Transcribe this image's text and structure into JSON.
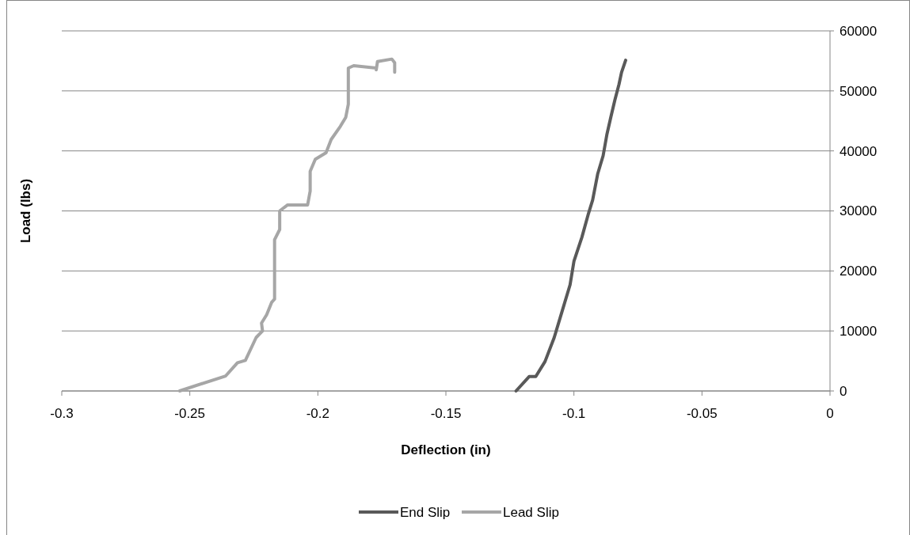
{
  "chart_data": {
    "type": "line",
    "xlabel": "Deflection (in)",
    "ylabel": "Load (lbs)",
    "xlim": [
      -0.3,
      0
    ],
    "xticks": [
      -0.3,
      -0.25,
      -0.2,
      -0.15,
      -0.1,
      -0.05,
      0
    ],
    "ylim": [
      0,
      60000
    ],
    "yticks": [
      0,
      10000,
      20000,
      30000,
      40000,
      50000,
      60000
    ],
    "grid": "y",
    "legend": "bottom",
    "line_style": "solid",
    "series": [
      {
        "name": "End Slip",
        "color": "#595959",
        "x": [
          -0.1226,
          -0.1175,
          -0.1149,
          -0.1113,
          -0.1077,
          -0.1046,
          -0.1015,
          -0.1,
          -0.0969,
          -0.0943,
          -0.0927,
          -0.0907,
          -0.0886,
          -0.0871,
          -0.0855,
          -0.084,
          -0.0824,
          -0.0814,
          -0.0798
        ],
        "values": [
          0,
          2400,
          2400,
          4900,
          8900,
          13300,
          17700,
          21600,
          25600,
          29600,
          31800,
          36200,
          39200,
          42800,
          45800,
          48500,
          51100,
          53100,
          55100
        ]
      },
      {
        "name": "Lead Slip",
        "color": "#a6a6a6",
        "x": [
          -0.254,
          -0.236,
          -0.2314,
          -0.2283,
          -0.2241,
          -0.2216,
          -0.222,
          -0.22,
          -0.218,
          -0.2169,
          -0.2169,
          -0.2149,
          -0.2149,
          -0.2118,
          -0.204,
          -0.203,
          -0.203,
          -0.201,
          -0.1968,
          -0.1948,
          -0.1912,
          -0.1891,
          -0.1881,
          -0.1881,
          -0.186,
          -0.1772,
          -0.1772,
          -0.1767,
          -0.1711,
          -0.17,
          -0.17
        ],
        "values": [
          0,
          2500,
          4700,
          5100,
          8900,
          10000,
          11300,
          12700,
          14800,
          15300,
          25200,
          26900,
          30000,
          31000,
          31000,
          33300,
          36600,
          38600,
          39700,
          41900,
          44100,
          45600,
          47800,
          53800,
          54200,
          53800,
          53500,
          54900,
          55300,
          54700,
          53100
        ]
      }
    ]
  }
}
